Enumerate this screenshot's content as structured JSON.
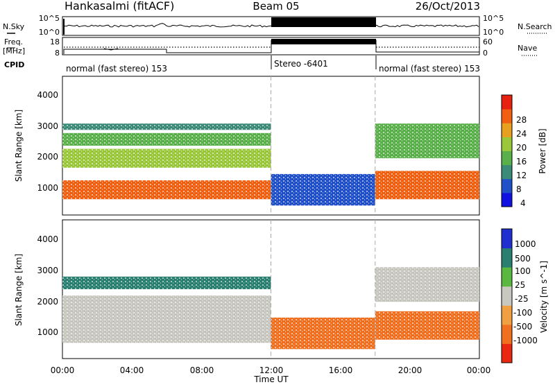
{
  "header": {
    "station": "Hankasalmi (fitACF)",
    "beam": "Beam 05",
    "date": "26/Oct/2013"
  },
  "colors": {
    "background": "#ffffff",
    "axis": "#000000",
    "divider": "#aaaaaa",
    "power_scale": [
      "#1010e0",
      "#2050c8",
      "#3c8a78",
      "#5ab04a",
      "#9ac83a",
      "#e8a020",
      "#f06010",
      "#e82010"
    ],
    "velocity_scale": [
      "#2030d0",
      "#2a8070",
      "#5ab840",
      "#c8c8c0",
      "#f0a040",
      "#f07020",
      "#e82810"
    ]
  },
  "top_panels": {
    "nsky": {
      "label_left": "N.Sky",
      "label_right": "N.Search",
      "ticks_left": [
        "10^5",
        "10^0"
      ],
      "ticks_right": [
        "10^5",
        "10^0"
      ],
      "legend_marker": "dotted"
    },
    "freq": {
      "label_left_top": "Freq.",
      "label_left_bottom": "[MHz]",
      "label_right": "Nave",
      "ticks_left": [
        "18",
        "8"
      ],
      "ticks_right": [
        "60",
        "0"
      ],
      "legend_marker": "dotted"
    },
    "cpid": {
      "label": "CPID",
      "segments": [
        {
          "label": "normal (fast stereo) 153",
          "start_h": 0,
          "end_h": 12
        },
        {
          "label": "Stereo -6401",
          "start_h": 12,
          "end_h": 18
        },
        {
          "label": "normal (fast stereo) 153",
          "start_h": 18,
          "end_h": 24
        }
      ]
    }
  },
  "chart_data": [
    {
      "type": "heatmap",
      "title": "",
      "ylabel": "Slant Range [km]",
      "yticks": [
        "1000",
        "2000",
        "3000",
        "4000"
      ],
      "ylim": [
        200,
        4600
      ],
      "xlim": [
        0,
        24
      ],
      "colorbar": {
        "label": "Power [dB]",
        "ticks": [
          "4",
          "8",
          "12",
          "16",
          "20",
          "24",
          "28"
        ],
        "range": [
          0,
          32
        ]
      },
      "bands": [
        {
          "x_start": 0,
          "x_end": 12,
          "y_start": 700,
          "y_end": 1300,
          "value": 26
        },
        {
          "x_start": 0,
          "x_end": 12,
          "y_start": 1700,
          "y_end": 2300,
          "value": 16
        },
        {
          "x_start": 0,
          "x_end": 12,
          "y_start": 2400,
          "y_end": 2800,
          "value": 14
        },
        {
          "x_start": 0,
          "x_end": 12,
          "y_start": 2900,
          "y_end": 3100,
          "value": 8
        },
        {
          "x_start": 12,
          "x_end": 18,
          "y_start": 500,
          "y_end": 1500,
          "value": 6
        },
        {
          "x_start": 18,
          "x_end": 24,
          "y_start": 700,
          "y_end": 1600,
          "value": 26
        },
        {
          "x_start": 18,
          "x_end": 24,
          "y_start": 2000,
          "y_end": 3100,
          "value": 12
        }
      ]
    },
    {
      "type": "heatmap",
      "title": "",
      "xlabel": "Time UT",
      "ylabel": "Slant Range [km]",
      "xticks": [
        "00:00",
        "04:00",
        "08:00",
        "12:00",
        "16:00",
        "20:00",
        "00:00"
      ],
      "yticks": [
        "1000",
        "2000",
        "3000",
        "4000"
      ],
      "ylim": [
        200,
        4600
      ],
      "xlim": [
        0,
        24
      ],
      "colorbar": {
        "label": "Velocity [m s^-1]",
        "ticks": [
          "1000",
          "500",
          "100",
          "25",
          "-25",
          "-100",
          "-500",
          "-1000"
        ]
      },
      "bands": [
        {
          "x_start": 0,
          "x_end": 12,
          "y_start": 700,
          "y_end": 2200,
          "value": 0
        },
        {
          "x_start": 0,
          "x_end": 12,
          "y_start": 2400,
          "y_end": 2800,
          "value": 150
        },
        {
          "x_start": 12,
          "x_end": 18,
          "y_start": 500,
          "y_end": 1500,
          "value": -300
        },
        {
          "x_start": 18,
          "x_end": 24,
          "y_start": 800,
          "y_end": 1700,
          "value": -300
        },
        {
          "x_start": 18,
          "x_end": 24,
          "y_start": 2000,
          "y_end": 3100,
          "value": 0
        }
      ]
    }
  ]
}
